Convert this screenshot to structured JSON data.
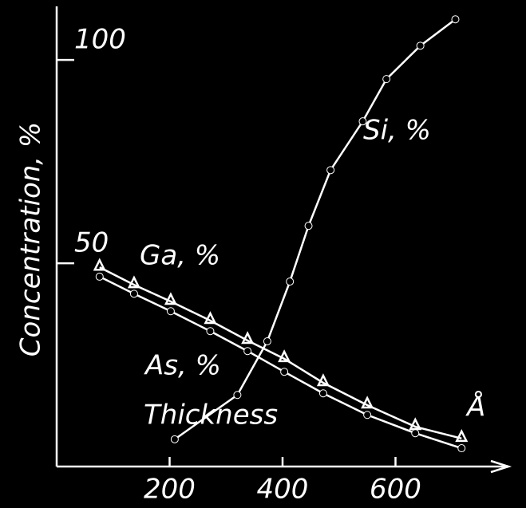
{
  "chart_data": {
    "type": "line",
    "ylabel": "Concentration, %",
    "xlabel": "Thickness",
    "xunit": "Å",
    "xlim": [
      0,
      800
    ],
    "xticks": [
      200,
      400,
      600
    ],
    "ylim": [
      0,
      112
    ],
    "yticks": [
      50,
      100
    ],
    "series": [
      {
        "name": "Si, %",
        "color": "#ffffff",
        "marker": "circle",
        "x": [
          209,
          320,
          373,
          413,
          446,
          485,
          542,
          584,
          644,
          706
        ],
        "values": [
          6.7,
          17.6,
          30.8,
          45.5,
          59.2,
          72.9,
          84.9,
          95.3,
          103.5,
          110
        ]
      },
      {
        "name": "Ga, %",
        "color": "#ffffff",
        "marker": "triangle",
        "x": [
          76,
          137,
          202,
          272,
          338,
          403,
          472,
          550,
          635,
          717
        ],
        "values": [
          49.0,
          44.7,
          40.6,
          35.9,
          31.0,
          26.5,
          20.6,
          15.1,
          9.8,
          6.9
        ]
      },
      {
        "name": "As, %",
        "color": "#ffffff",
        "marker": "circle",
        "x": [
          76,
          137,
          202,
          272,
          338,
          403,
          472,
          550,
          635,
          717
        ],
        "values": [
          46.7,
          42.5,
          38.2,
          33.3,
          28.4,
          23.3,
          18.0,
          12.7,
          8.2,
          4.5
        ]
      }
    ]
  }
}
